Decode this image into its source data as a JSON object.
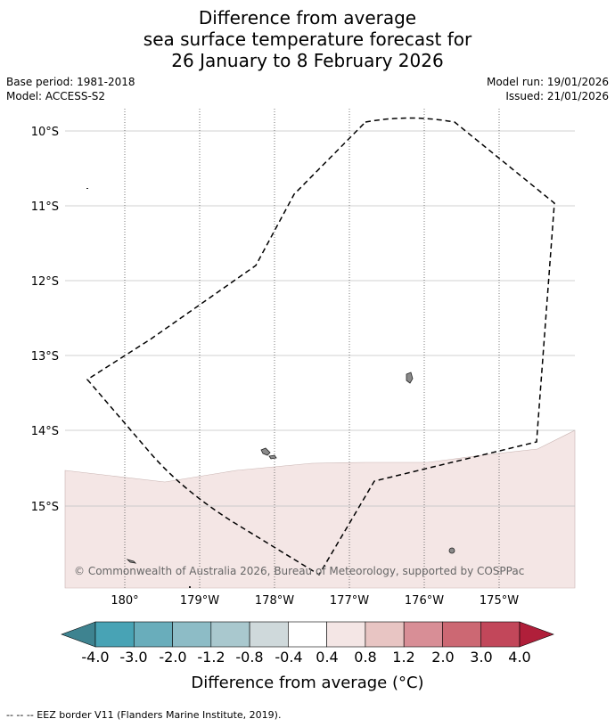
{
  "title": {
    "line1": "Difference from average",
    "line2": "sea surface temperature forecast for",
    "line3": "26 January to 8 February 2026"
  },
  "meta": {
    "base_period": "Base period: 1981-2018",
    "model": "Model: ACCESS-S2",
    "model_run": "Model run: 19/01/2026",
    "issued": "Issued: 21/01/2026"
  },
  "map": {
    "lat_labels": [
      "10°S",
      "11°S",
      "12°S",
      "13°S",
      "14°S",
      "15°S"
    ],
    "lon_labels": [
      "180°",
      "179°W",
      "178°W",
      "177°W",
      "176°W",
      "175°W"
    ],
    "copyright": "© Commonwealth of Australia 2026, Bureau of Meteorology, supported by COSPPac",
    "anomaly_fill_color": "#f4e6e5",
    "land_color": "#8a8a8a"
  },
  "colorbar": {
    "labels": [
      "-4.0",
      "-3.0",
      "-2.0",
      "-1.2",
      "-0.8",
      "-0.4",
      "0.4",
      "0.8",
      "1.2",
      "2.0",
      "3.0",
      "4.0"
    ],
    "colors": [
      "#3e8390",
      "#48a3b5",
      "#69adbb",
      "#8dbcc6",
      "#a9c8ce",
      "#cfd9db",
      "#ffffff",
      "#f4e6e5",
      "#e8c5c3",
      "#d88e96",
      "#cc6873",
      "#c2475a",
      "#b01f3a"
    ],
    "label": "Difference from average (°C)"
  },
  "footnote": "--  --  -- EEZ border V11 (Flanders Marine Institute, 2019)."
}
